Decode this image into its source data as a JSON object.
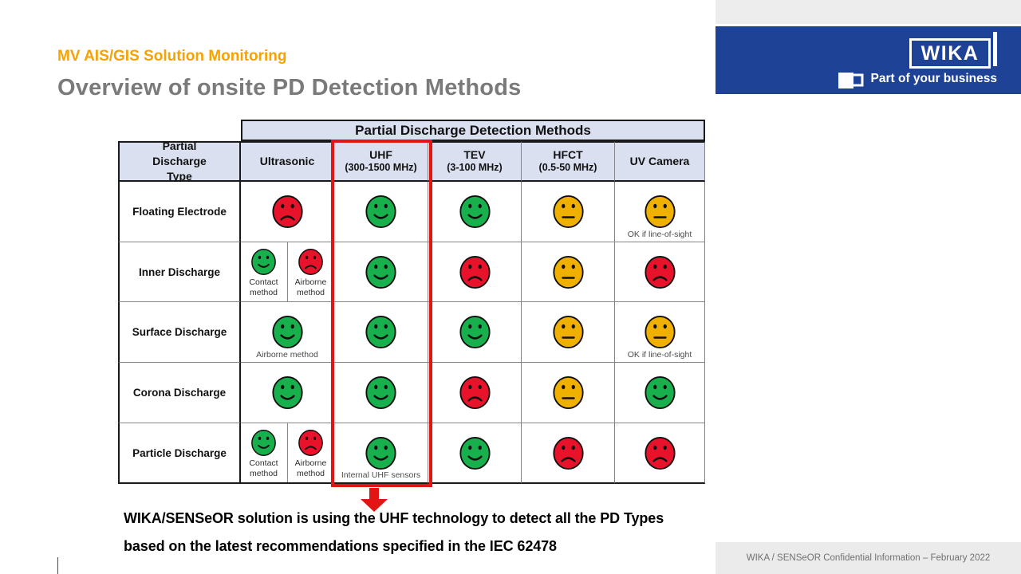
{
  "slide": {
    "eyebrow": "MV AIS/GIS Solution Monitoring",
    "title": "Overview of onsite PD Detection Methods"
  },
  "logo": {
    "brand": "WIKA",
    "tagline": "Part of your business"
  },
  "table": {
    "banner": "Partial Discharge Detection Methods",
    "row_header": "Partial Discharge Type",
    "columns": [
      {
        "label": "Ultrasonic",
        "sub": ""
      },
      {
        "label": "UHF",
        "sub": "(300-1500 MHz)"
      },
      {
        "label": "TEV",
        "sub": "(3-100 MHz)"
      },
      {
        "label": "HFCT",
        "sub": "(0.5-50 MHz)"
      },
      {
        "label": "UV Camera",
        "sub": ""
      }
    ],
    "rows": [
      {
        "type": "Floating Electrode",
        "cells": [
          {
            "faces": [
              {
                "mood": "sad",
                "color": "red"
              }
            ]
          },
          {
            "faces": [
              {
                "mood": "happy",
                "color": "green"
              }
            ]
          },
          {
            "faces": [
              {
                "mood": "happy",
                "color": "green"
              }
            ]
          },
          {
            "faces": [
              {
                "mood": "neutral",
                "color": "yellow"
              }
            ]
          },
          {
            "faces": [
              {
                "mood": "neutral",
                "color": "yellow"
              }
            ],
            "note": "OK if line-of-sight"
          }
        ]
      },
      {
        "type": "Inner Discharge",
        "cells": [
          {
            "faces": [
              {
                "mood": "happy",
                "color": "green",
                "label": "Contact method"
              },
              {
                "mood": "sad",
                "color": "red",
                "label": "Airborne method"
              }
            ]
          },
          {
            "faces": [
              {
                "mood": "happy",
                "color": "green"
              }
            ]
          },
          {
            "faces": [
              {
                "mood": "sad",
                "color": "red"
              }
            ]
          },
          {
            "faces": [
              {
                "mood": "neutral",
                "color": "yellow"
              }
            ]
          },
          {
            "faces": [
              {
                "mood": "sad",
                "color": "red"
              }
            ]
          }
        ]
      },
      {
        "type": "Surface Discharge",
        "cells": [
          {
            "faces": [
              {
                "mood": "happy",
                "color": "green"
              }
            ],
            "note": "Airborne method"
          },
          {
            "faces": [
              {
                "mood": "happy",
                "color": "green"
              }
            ]
          },
          {
            "faces": [
              {
                "mood": "happy",
                "color": "green"
              }
            ]
          },
          {
            "faces": [
              {
                "mood": "neutral",
                "color": "yellow"
              }
            ]
          },
          {
            "faces": [
              {
                "mood": "neutral",
                "color": "yellow"
              }
            ],
            "note": "OK if line-of-sight"
          }
        ]
      },
      {
        "type": "Corona Discharge",
        "cells": [
          {
            "faces": [
              {
                "mood": "happy",
                "color": "green"
              }
            ]
          },
          {
            "faces": [
              {
                "mood": "happy",
                "color": "green"
              }
            ]
          },
          {
            "faces": [
              {
                "mood": "sad",
                "color": "red"
              }
            ]
          },
          {
            "faces": [
              {
                "mood": "neutral",
                "color": "yellow"
              }
            ]
          },
          {
            "faces": [
              {
                "mood": "happy",
                "color": "green"
              }
            ]
          }
        ]
      },
      {
        "type": "Particle Discharge",
        "cells": [
          {
            "faces": [
              {
                "mood": "happy",
                "color": "green",
                "label": "Contact method"
              },
              {
                "mood": "sad",
                "color": "red",
                "label": "Airborne method"
              }
            ]
          },
          {
            "faces": [
              {
                "mood": "happy",
                "color": "green"
              }
            ],
            "note": "Internal UHF sensors"
          },
          {
            "faces": [
              {
                "mood": "happy",
                "color": "green"
              }
            ]
          },
          {
            "faces": [
              {
                "mood": "sad",
                "color": "red"
              }
            ]
          },
          {
            "faces": [
              {
                "mood": "sad",
                "color": "red"
              }
            ]
          }
        ]
      }
    ]
  },
  "caption": {
    "line1": "WIKA/SENSeOR solution is using the UHF technology to detect all the PD Types",
    "line2": "based on the latest recommendations specified in the IEC 62478"
  },
  "footer": {
    "text": "WIKA / SENSeOR  Confidential Information – February 2022"
  },
  "colors": {
    "green": "#17b04d",
    "red": "#e8132b",
    "yellow": "#f0b000",
    "accent_red": "#e31414",
    "lavender": "#dae0f0",
    "wika_blue": "#1d4296",
    "wika_orange": "#f6a200"
  }
}
